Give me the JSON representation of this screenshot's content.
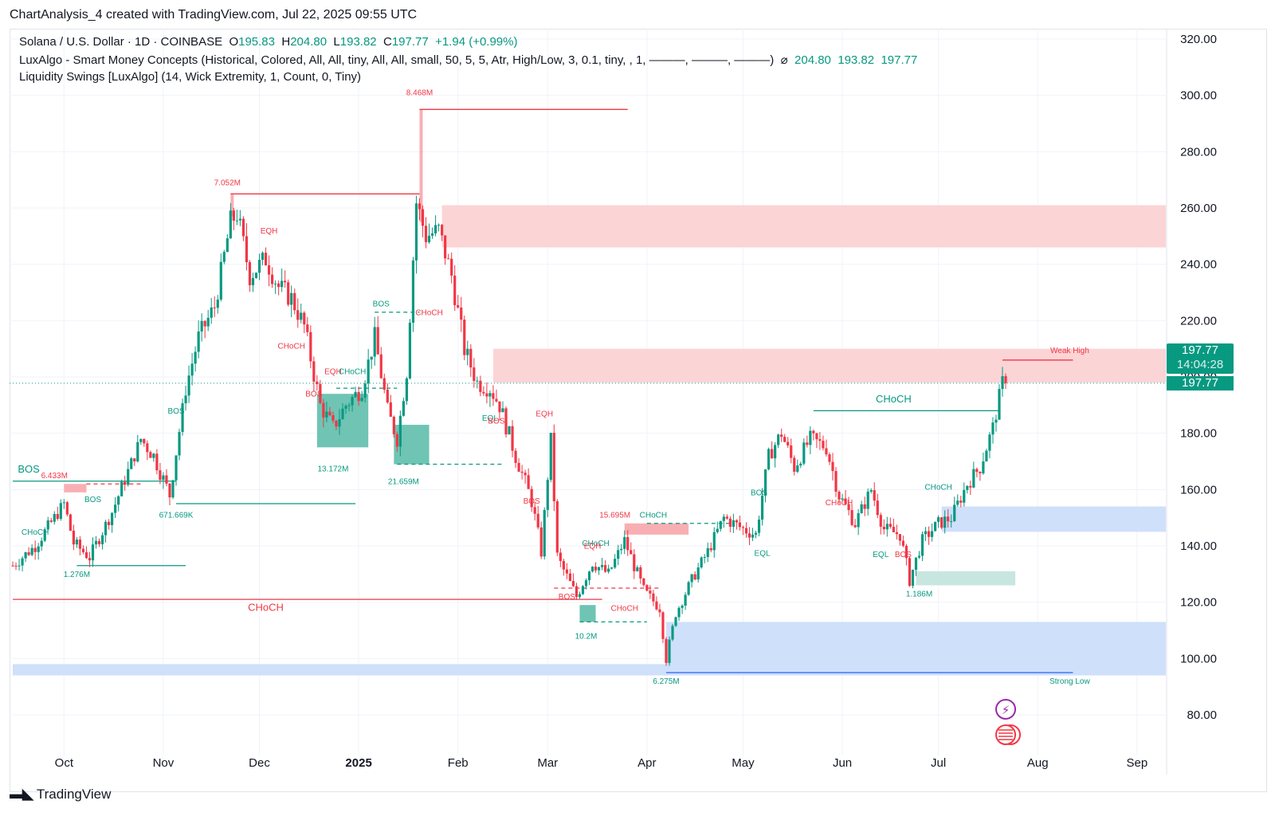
{
  "header": {
    "text": "ChartAnalysis_4 created with TradingView.com, Jul 22, 2025 09:55 UTC"
  },
  "legend": {
    "symbol": "Solana / U.S. Dollar · 1D · COINBASE",
    "o_label": "O",
    "o_value": "195.83",
    "h_label": "H",
    "h_value": "204.80",
    "l_label": "L",
    "l_value": "193.82",
    "c_label": "C",
    "c_value": "197.77",
    "change": "+1.94 (+0.99%)",
    "indicator1": "LuxAlgo - Smart Money Concepts (Historical, Colored, All, All, tiny, All, All, small, 50, 5, 5, Atr, High/Low, 3, 0.1, tiny, , 1, ———, ———, ———)",
    "indicator1_icon": "⌀",
    "indicator1_values": "204.80  193.82  197.77",
    "indicator2": "Liquidity Swings [LuxAlgo] (14, Wick Extremity, 1, Count, 0, Tiny)"
  },
  "price_badge": {
    "price": "197.77",
    "countdown": "14:04:28",
    "price2": "197.77"
  },
  "footer": {
    "brand": "TradingView"
  },
  "colors": {
    "up": "#089981",
    "down": "#f23645",
    "supply": "#fbd4d6",
    "demand": "#cfe0fb",
    "ob_green": "#6fc4b4"
  },
  "chart_data": {
    "type": "candlestick",
    "title": "Solana / U.S. Dollar · 1D · COINBASE",
    "y_ticks": [
      "320.00",
      "300.00",
      "280.00",
      "260.00",
      "240.00",
      "220.00",
      "200.00",
      "180.00",
      "160.00",
      "140.00",
      "120.00",
      "100.00",
      "80.00"
    ],
    "ylim": [
      72,
      322
    ],
    "x_labels": [
      "Oct",
      "Nov",
      "Dec",
      "2025",
      "Feb",
      "Mar",
      "Apr",
      "May",
      "Jun",
      "Jul",
      "Aug",
      "Sep"
    ],
    "close_path": [
      {
        "date": "2024-09-15",
        "close": 133
      },
      {
        "date": "2024-09-22",
        "close": 140
      },
      {
        "date": "2024-10-01",
        "close": 155
      },
      {
        "date": "2024-10-04",
        "close": 141
      },
      {
        "date": "2024-10-09",
        "close": 136
      },
      {
        "date": "2024-10-16",
        "close": 152
      },
      {
        "date": "2024-10-25",
        "close": 178
      },
      {
        "date": "2024-10-29",
        "close": 172
      },
      {
        "date": "2024-11-03",
        "close": 158
      },
      {
        "date": "2024-11-08",
        "close": 196
      },
      {
        "date": "2024-11-12",
        "close": 214
      },
      {
        "date": "2024-11-17",
        "close": 225
      },
      {
        "date": "2024-11-22",
        "close": 255
      },
      {
        "date": "2024-11-24",
        "close": 258
      },
      {
        "date": "2024-11-28",
        "close": 236
      },
      {
        "date": "2024-12-03",
        "close": 242
      },
      {
        "date": "2024-12-07",
        "close": 232
      },
      {
        "date": "2024-12-11",
        "close": 228
      },
      {
        "date": "2024-12-15",
        "close": 218
      },
      {
        "date": "2024-12-20",
        "close": 190
      },
      {
        "date": "2024-12-24",
        "close": 182
      },
      {
        "date": "2024-12-28",
        "close": 190
      },
      {
        "date": "2025-01-02",
        "close": 196
      },
      {
        "date": "2025-01-06",
        "close": 214
      },
      {
        "date": "2025-01-10",
        "close": 188
      },
      {
        "date": "2025-01-13",
        "close": 178
      },
      {
        "date": "2025-01-16",
        "close": 202
      },
      {
        "date": "2025-01-19",
        "close": 262
      },
      {
        "date": "2025-01-22",
        "close": 250
      },
      {
        "date": "2025-01-26",
        "close": 252
      },
      {
        "date": "2025-01-30",
        "close": 236
      },
      {
        "date": "2025-02-03",
        "close": 210
      },
      {
        "date": "2025-02-07",
        "close": 198
      },
      {
        "date": "2025-02-11",
        "close": 196
      },
      {
        "date": "2025-02-14",
        "close": 190
      },
      {
        "date": "2025-02-19",
        "close": 172
      },
      {
        "date": "2025-02-24",
        "close": 156
      },
      {
        "date": "2025-02-27",
        "close": 138
      },
      {
        "date": "2025-03-02",
        "close": 178
      },
      {
        "date": "2025-03-04",
        "close": 136
      },
      {
        "date": "2025-03-10",
        "close": 122
      },
      {
        "date": "2025-03-15",
        "close": 134
      },
      {
        "date": "2025-03-20",
        "close": 130
      },
      {
        "date": "2025-03-25",
        "close": 142
      },
      {
        "date": "2025-03-31",
        "close": 124
      },
      {
        "date": "2025-04-05",
        "close": 118
      },
      {
        "date": "2025-04-07",
        "close": 100
      },
      {
        "date": "2025-04-10",
        "close": 116
      },
      {
        "date": "2025-04-15",
        "close": 128
      },
      {
        "date": "2025-04-20",
        "close": 138
      },
      {
        "date": "2025-04-25",
        "close": 150
      },
      {
        "date": "2025-05-01",
        "close": 146
      },
      {
        "date": "2025-05-05",
        "close": 144
      },
      {
        "date": "2025-05-09",
        "close": 172
      },
      {
        "date": "2025-05-13",
        "close": 180
      },
      {
        "date": "2025-05-17",
        "close": 168
      },
      {
        "date": "2025-05-22",
        "close": 178
      },
      {
        "date": "2025-05-27",
        "close": 175
      },
      {
        "date": "2025-05-31",
        "close": 158
      },
      {
        "date": "2025-06-05",
        "close": 148
      },
      {
        "date": "2025-06-10",
        "close": 160
      },
      {
        "date": "2025-06-14",
        "close": 146
      },
      {
        "date": "2025-06-19",
        "close": 144
      },
      {
        "date": "2025-06-22",
        "close": 128
      },
      {
        "date": "2025-06-26",
        "close": 142
      },
      {
        "date": "2025-07-01",
        "close": 148
      },
      {
        "date": "2025-07-05",
        "close": 150
      },
      {
        "date": "2025-07-10",
        "close": 162
      },
      {
        "date": "2025-07-14",
        "close": 168
      },
      {
        "date": "2025-07-18",
        "close": 182
      },
      {
        "date": "2025-07-21",
        "close": 198
      },
      {
        "date": "2025-07-22",
        "close": 197.77
      }
    ],
    "zones": [
      {
        "kind": "supply",
        "x1": "2025-01-27",
        "x2": "2025-09-10",
        "y1": 246,
        "y2": 261
      },
      {
        "kind": "supply",
        "x1": "2025-02-12",
        "x2": "2025-09-10",
        "y1": 198,
        "y2": 210
      },
      {
        "kind": "demand",
        "x1": "2025-07-02",
        "x2": "2025-09-10",
        "y1": 145,
        "y2": 154
      },
      {
        "kind": "demand",
        "x1": "2025-04-07",
        "x2": "2025-09-10",
        "y1": 96,
        "y2": 113
      },
      {
        "kind": "demand",
        "x1": "2024-09-15",
        "x2": "2025-09-10",
        "y1": 94,
        "y2": 98
      },
      {
        "kind": "ob_green",
        "x1": "2024-12-19",
        "x2": "2025-01-04",
        "y1": 175,
        "y2": 194
      },
      {
        "kind": "ob_green",
        "x1": "2025-01-12",
        "x2": "2025-01-23",
        "y1": 169,
        "y2": 183
      },
      {
        "kind": "ob_green",
        "x1": "2025-03-11",
        "x2": "2025-03-16",
        "y1": 113,
        "y2": 119
      },
      {
        "kind": "ob_light",
        "x1": "2025-06-24",
        "x2": "2025-07-25",
        "y1": 126,
        "y2": 131
      },
      {
        "kind": "ob_red",
        "x1": "2024-10-01",
        "x2": "2024-10-08",
        "y1": 159,
        "y2": 162
      },
      {
        "kind": "ob_red",
        "x1": "2025-03-25",
        "x2": "2025-04-14",
        "y1": 144,
        "y2": 148
      },
      {
        "kind": "ob_red",
        "x1": "2025-01-20",
        "x2": "2025-01-21",
        "y1": 255,
        "y2": 295
      },
      {
        "kind": "ob_red",
        "x1": "2024-11-22",
        "x2": "2024-11-23",
        "y1": 257,
        "y2": 265
      }
    ],
    "levels": [
      {
        "color": "red",
        "x1": "2025-01-20",
        "x2": "2025-03-26",
        "y": 295,
        "style": "solid"
      },
      {
        "color": "red",
        "x1": "2024-11-22",
        "x2": "2025-01-20",
        "y": 265,
        "style": "solid"
      },
      {
        "color": "red",
        "x1": "2025-07-21",
        "x2": "2025-08-12",
        "y": 206,
        "style": "solid"
      },
      {
        "color": "green",
        "x1": "2025-05-23",
        "x2": "2025-07-20",
        "y": 188,
        "style": "solid"
      },
      {
        "color": "green",
        "x1": "2024-11-05",
        "x2": "2024-12-31",
        "y": 155,
        "style": "solid"
      },
      {
        "color": "green",
        "x1": "2024-10-05",
        "x2": "2024-11-08",
        "y": 133,
        "style": "solid"
      },
      {
        "color": "green",
        "x1": "2024-09-15",
        "x2": "2024-11-05",
        "y": 163,
        "style": "solid"
      },
      {
        "color": "red",
        "x1": "2024-09-15",
        "x2": "2025-03-18",
        "y": 121,
        "style": "solid"
      },
      {
        "color": "blue",
        "x1": "2025-04-07",
        "x2": "2025-08-12",
        "y": 95,
        "style": "solid"
      },
      {
        "color": "green",
        "x1": "2025-01-13",
        "x2": "2025-02-15",
        "y": 169,
        "style": "dashed"
      },
      {
        "color": "green",
        "x1": "2025-03-11",
        "x2": "2025-04-01",
        "y": 113,
        "style": "dashed"
      },
      {
        "color": "green",
        "x1": "2025-04-01",
        "x2": "2025-04-27",
        "y": 148,
        "style": "dashed"
      },
      {
        "color": "red",
        "x1": "2024-10-08",
        "x2": "2024-10-25",
        "y": 162,
        "style": "dashed"
      },
      {
        "color": "red",
        "x1": "2025-03-03",
        "x2": "2025-04-05",
        "y": 125,
        "style": "dashed"
      },
      {
        "color": "green",
        "x1": "2024-12-25",
        "x2": "2025-01-13",
        "y": 196,
        "style": "dashed"
      },
      {
        "color": "green",
        "x1": "2025-01-06",
        "x2": "2025-01-20",
        "y": 223,
        "style": "dashed"
      }
    ],
    "labels": [
      {
        "text": "8.468M",
        "date": "2025-01-20",
        "y": 300,
        "color": "red",
        "size": 10
      },
      {
        "text": "7.052M",
        "date": "2024-11-21",
        "y": 268,
        "color": "red",
        "size": 10
      },
      {
        "text": "EQH",
        "date": "2024-12-04",
        "y": 251,
        "color": "red",
        "size": 10
      },
      {
        "text": "BOS",
        "date": "2025-01-08",
        "y": 225,
        "color": "green",
        "size": 10
      },
      {
        "text": "CHoCH",
        "date": "2025-01-23",
        "y": 222,
        "color": "red",
        "size": 10
      },
      {
        "text": "CHoCH",
        "date": "2024-12-11",
        "y": 210,
        "color": "red",
        "size": 10
      },
      {
        "text": "EQH",
        "date": "2024-12-24",
        "y": 201,
        "color": "red",
        "size": 10
      },
      {
        "text": "CHoCH",
        "date": "2024-12-30",
        "y": 201,
        "color": "green",
        "size": 10
      },
      {
        "text": "BOS",
        "date": "2024-12-18",
        "y": 193,
        "color": "red",
        "size": 10
      },
      {
        "text": "Weak High",
        "date": "2025-08-11",
        "y": 208.5,
        "color": "red",
        "size": 10
      },
      {
        "text": "CHoCH",
        "date": "2025-06-17",
        "y": 191,
        "color": "green",
        "size": 13
      },
      {
        "text": "EQL",
        "date": "2025-02-11",
        "y": 184.5,
        "color": "green",
        "size": 10
      },
      {
        "text": "BOS",
        "date": "2025-02-13",
        "y": 183.5,
        "color": "red",
        "size": 10
      },
      {
        "text": "EQH",
        "date": "2025-02-28",
        "y": 186,
        "color": "red",
        "size": 10
      },
      {
        "text": "BOS",
        "date": "2024-11-05",
        "y": 187,
        "color": "green",
        "size": 10
      },
      {
        "text": "13.172M",
        "date": "2024-12-24",
        "y": 166.5,
        "color": "green",
        "size": 10
      },
      {
        "text": "21.659M",
        "date": "2025-01-15",
        "y": 162,
        "color": "green",
        "size": 10
      },
      {
        "text": "BOS",
        "date": "2024-09-20",
        "y": 166,
        "color": "green",
        "size": 13
      },
      {
        "text": "6.433M",
        "date": "2024-09-28",
        "y": 164,
        "color": "red",
        "size": 10
      },
      {
        "text": "BOS",
        "date": "2024-10-10",
        "y": 155.5,
        "color": "green",
        "size": 10
      },
      {
        "text": "671.669K",
        "date": "2024-11-05",
        "y": 150,
        "color": "green",
        "size": 10
      },
      {
        "text": "BOS",
        "date": "2025-02-24",
        "y": 155,
        "color": "red",
        "size": 10
      },
      {
        "text": "15.695M",
        "date": "2025-03-22",
        "y": 150,
        "color": "red",
        "size": 10
      },
      {
        "text": "CHoCH",
        "date": "2025-04-03",
        "y": 150,
        "color": "green",
        "size": 10
      },
      {
        "text": "BOS",
        "date": "2025-05-06",
        "y": 158,
        "color": "green",
        "size": 10
      },
      {
        "text": "CHoCH",
        "date": "2025-05-31",
        "y": 154.5,
        "color": "red",
        "size": 10
      },
      {
        "text": "CHoCH",
        "date": "2025-07-01",
        "y": 160,
        "color": "green",
        "size": 10
      },
      {
        "text": "CHoCH",
        "date": "2024-09-22",
        "y": 144,
        "color": "green",
        "size": 10
      },
      {
        "text": "CHoCH",
        "date": "2025-03-16",
        "y": 140,
        "color": "green",
        "size": 10
      },
      {
        "text": "EQH",
        "date": "2025-03-15",
        "y": 139,
        "color": "red",
        "size": 10
      },
      {
        "text": "EQL",
        "date": "2025-05-07",
        "y": 136.5,
        "color": "green",
        "size": 10
      },
      {
        "text": "EQL",
        "date": "2025-06-13",
        "y": 136,
        "color": "green",
        "size": 10
      },
      {
        "text": "BOS",
        "date": "2025-06-20",
        "y": 136,
        "color": "red",
        "size": 10
      },
      {
        "text": "1.276M",
        "date": "2024-10-05",
        "y": 129,
        "color": "green",
        "size": 10
      },
      {
        "text": "1.186M",
        "date": "2025-06-25",
        "y": 122,
        "color": "green",
        "size": 10
      },
      {
        "text": "CHoCH",
        "date": "2024-12-03",
        "y": 117,
        "color": "red",
        "size": 13
      },
      {
        "text": "BOS",
        "date": "2025-03-07",
        "y": 121,
        "color": "red",
        "size": 10
      },
      {
        "text": "CHoCH",
        "date": "2025-03-25",
        "y": 117,
        "color": "red",
        "size": 10
      },
      {
        "text": "10.2M",
        "date": "2025-03-13",
        "y": 107,
        "color": "green",
        "size": 10
      },
      {
        "text": "6.275M",
        "date": "2025-04-07",
        "y": 91,
        "color": "green",
        "size": 10
      },
      {
        "text": "Strong Low",
        "date": "2025-08-11",
        "y": 91,
        "color": "green",
        "size": 10
      }
    ],
    "last_price": 197.77,
    "last_date": "2025-07-22",
    "x_label_dates": [
      "2024-10-01",
      "2024-11-01",
      "2024-12-01",
      "2025-01-01",
      "2025-02-01",
      "2025-03-01",
      "2025-04-01",
      "2025-05-01",
      "2025-06-01",
      "2025-07-01",
      "2025-08-01",
      "2025-09-01"
    ]
  }
}
